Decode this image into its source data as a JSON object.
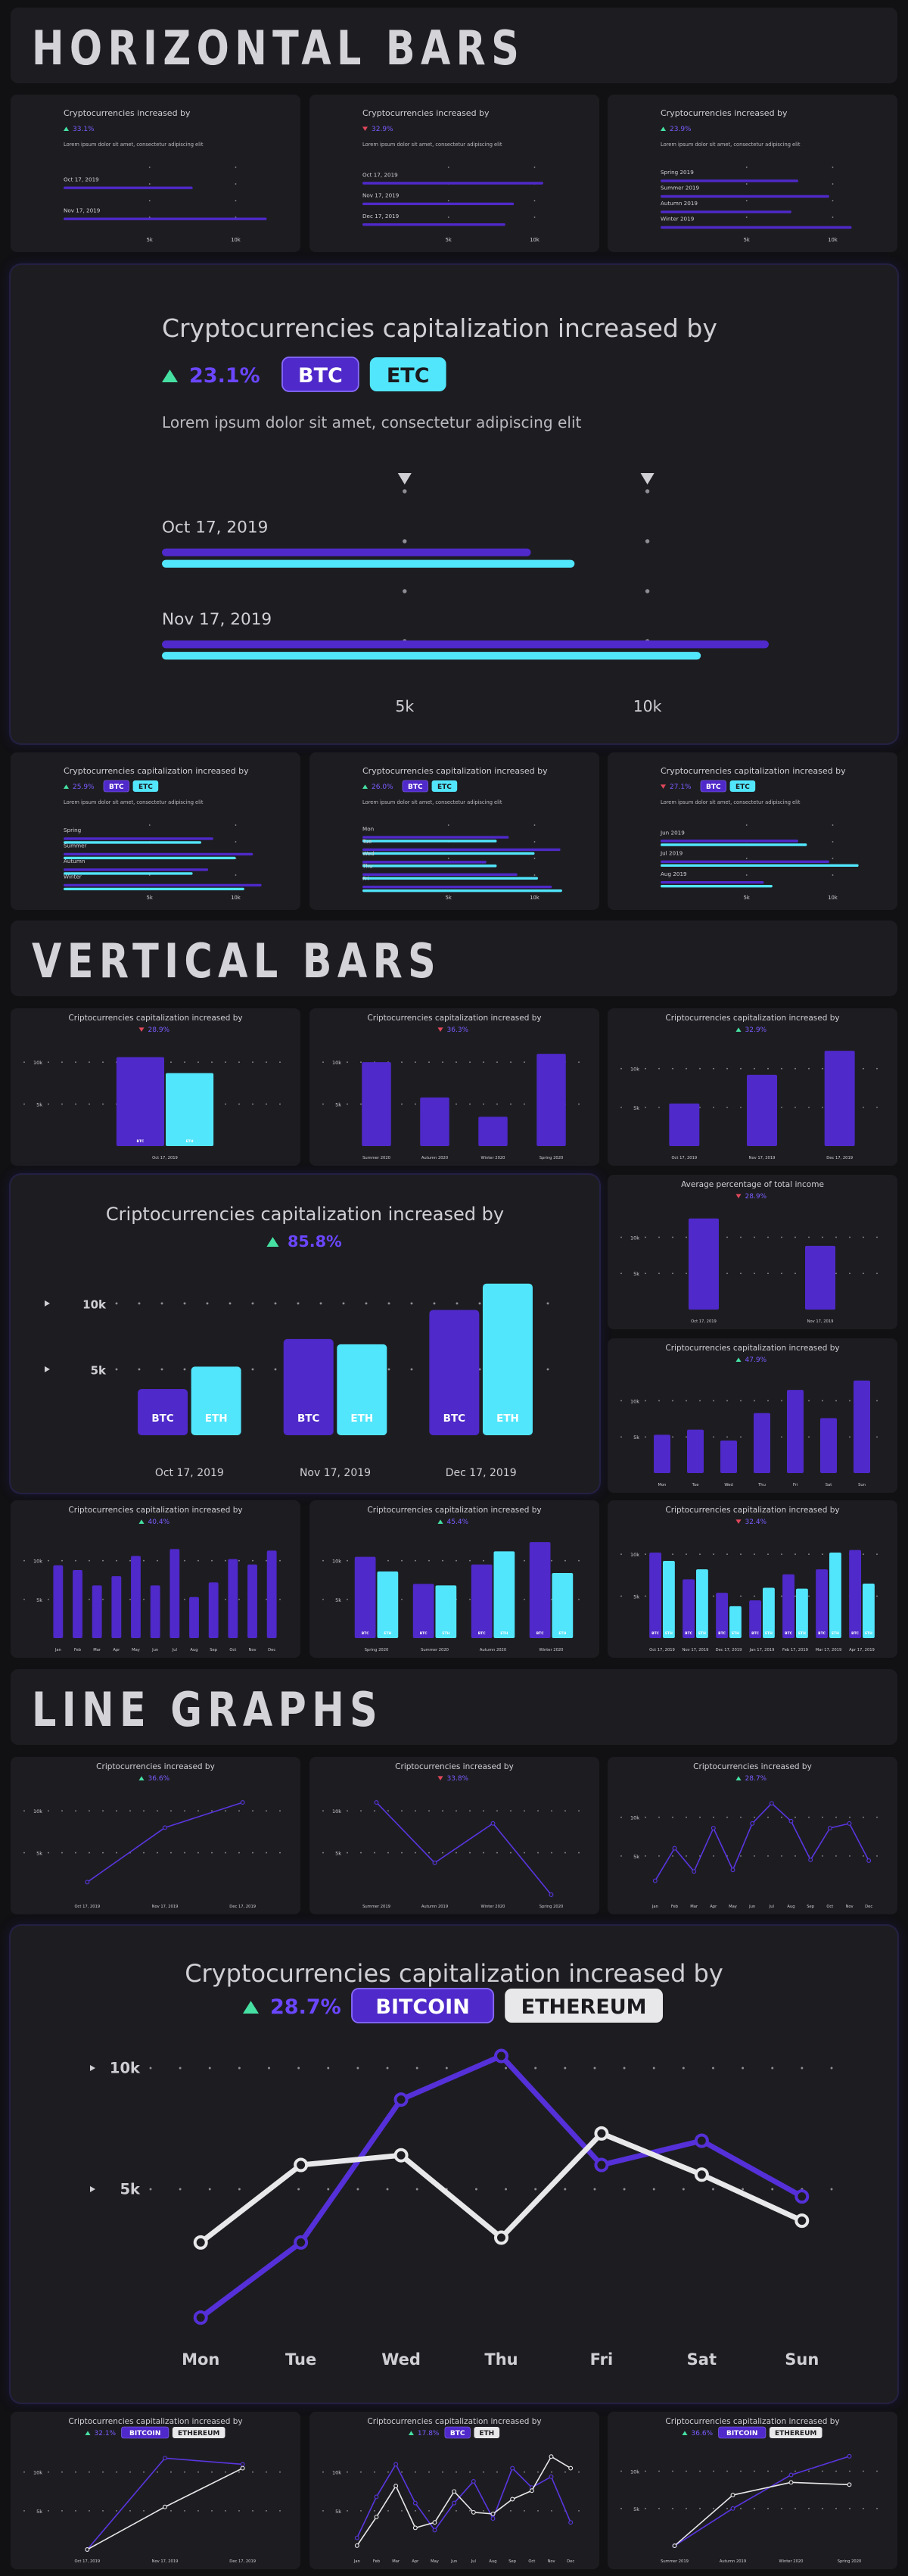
{
  "colors": {
    "purple": "#4f29c9",
    "cyan": "#52e6fc",
    "white": "#e8e8ea",
    "up": "#46e0a3",
    "down": "#e0475b"
  },
  "sections": {
    "horizontal": "HORIZONTAL BARS",
    "vertical": "VERTICAL BARS",
    "line": "LINE GRAPHS"
  },
  "chart_data": [
    {
      "id": "h1",
      "type": "bar",
      "orientation": "horizontal",
      "title": "Cryptocurrencies increased by",
      "change": "33.1%",
      "trend": "up",
      "subtitle": "Lorem ipsum dolor sit amet, consectetur adipiscing elit",
      "categories": [
        "Oct 17, 2019",
        "Nov 17, 2019"
      ],
      "series": [
        {
          "values": [
            7500,
            11800
          ]
        }
      ],
      "xlim": [
        0,
        12000
      ],
      "ticks": [
        5000,
        10000
      ],
      "tick_labels": [
        "5k",
        "10k"
      ]
    },
    {
      "id": "h2",
      "type": "bar",
      "orientation": "horizontal",
      "title": "Cryptocurrencies increased by",
      "change": "32.9%",
      "trend": "down",
      "subtitle": "Lorem ipsum dolor sit amet, consectetur adipiscing elit",
      "categories": [
        "Oct 17, 2019",
        "Nov 17, 2019",
        "Dec 17, 2019"
      ],
      "series": [
        {
          "values": [
            10500,
            8800,
            8300
          ]
        }
      ],
      "xlim": [
        0,
        12000
      ],
      "ticks": [
        5000,
        10000
      ],
      "tick_labels": [
        "5k",
        "10k"
      ]
    },
    {
      "id": "h3",
      "type": "bar",
      "orientation": "horizontal",
      "title": "Cryptocurrencies increased by",
      "change": "23.9%",
      "trend": "up",
      "subtitle": "Lorem ipsum dolor sit amet, consectetur adipiscing elit",
      "categories": [
        "Spring 2019",
        "Summer 2019",
        "Autumn 2019",
        "Winter 2019"
      ],
      "series": [
        {
          "values": [
            8000,
            9800,
            7600,
            11100
          ]
        }
      ],
      "xlim": [
        0,
        12000
      ],
      "ticks": [
        5000,
        10000
      ],
      "tick_labels": [
        "5k",
        "10k"
      ]
    },
    {
      "id": "hbig",
      "type": "bar",
      "orientation": "horizontal",
      "title": "Cryptocurrencies capitalization increased by",
      "change": "23.1%",
      "trend": "up",
      "tags": [
        "BTC",
        "ETC"
      ],
      "subtitle": "Lorem ipsum dolor sit amet, consectetur adipiscing elit",
      "categories": [
        "Oct 17, 2019",
        "Nov 17, 2019"
      ],
      "series": [
        {
          "name": "BTC",
          "values": [
            7600,
            12500
          ]
        },
        {
          "name": "ETC",
          "values": [
            8500,
            11100
          ]
        }
      ],
      "xlim": [
        0,
        12500
      ],
      "ticks": [
        5000,
        10000
      ],
      "tick_labels": [
        "5k",
        "10k"
      ]
    },
    {
      "id": "h4",
      "type": "bar",
      "orientation": "horizontal",
      "title": "Cryptocurrencies capitalization increased by",
      "change": "25.9%",
      "trend": "up",
      "tags": [
        "BTC",
        "ETC"
      ],
      "subtitle": "Lorem ipsum dolor sit amet, consectetur adipiscing elit",
      "categories": [
        "Spring",
        "Summer",
        "Autumn",
        "Winter"
      ],
      "series": [
        {
          "name": "BTC",
          "values": [
            8700,
            11000,
            8400,
            11500
          ]
        },
        {
          "name": "ETC",
          "values": [
            8000,
            10000,
            7500,
            10500
          ]
        }
      ],
      "xlim": [
        0,
        12000
      ],
      "ticks": [
        5000,
        10000
      ],
      "tick_labels": [
        "5k",
        "10k"
      ]
    },
    {
      "id": "h5",
      "type": "bar",
      "orientation": "horizontal",
      "title": "Cryptocurrencies capitalization increased by",
      "change": "26.0%",
      "trend": "up",
      "tags": [
        "BTC",
        "ETC"
      ],
      "subtitle": "Lorem ipsum dolor sit amet, consectetur adipiscing elit",
      "categories": [
        "Mon",
        "Tue",
        "Wed",
        "Thu",
        "Fri"
      ],
      "series": [
        {
          "name": "BTC",
          "values": [
            8500,
            11500,
            7200,
            9000,
            11000
          ]
        },
        {
          "name": "ETC",
          "values": [
            7800,
            10000,
            7800,
            10200,
            11600
          ]
        }
      ],
      "xlim": [
        0,
        12000
      ],
      "ticks": [
        5000,
        10000
      ],
      "tick_labels": [
        "5k",
        "10k"
      ]
    },
    {
      "id": "h6",
      "type": "bar",
      "orientation": "horizontal",
      "title": "Cryptocurrencies capitalization increased by",
      "change": "27.1%",
      "trend": "down",
      "tags": [
        "BTC",
        "ETC"
      ],
      "subtitle": "Lorem ipsum dolor sit amet, consectetur adipiscing elit",
      "categories": [
        "Jun 2019",
        "Jul 2019",
        "Aug 2019"
      ],
      "series": [
        {
          "name": "BTC",
          "values": [
            8000,
            9800,
            6000
          ]
        },
        {
          "name": "ETC",
          "values": [
            8500,
            11500,
            6500
          ]
        }
      ],
      "xlim": [
        0,
        12000
      ],
      "ticks": [
        5000,
        10000
      ],
      "tick_labels": [
        "5k",
        "10k"
      ]
    },
    {
      "id": "v1",
      "type": "bar",
      "orientation": "vertical",
      "title": "Criptocurrencies capitalization increased by",
      "change": "28.9%",
      "trend": "down",
      "categories": [
        "Oct 17, 2019"
      ],
      "series": [
        {
          "name": "BTC",
          "values": [
            10600
          ]
        },
        {
          "name": "ETH",
          "values": [
            8700
          ]
        }
      ],
      "ylim": [
        0,
        12000
      ],
      "ticks": [
        5000,
        10000
      ],
      "tick_labels": [
        "5k",
        "10k"
      ]
    },
    {
      "id": "v2",
      "type": "bar",
      "orientation": "vertical",
      "title": "Criptocurrencies capitalization increased by",
      "change": "36.3%",
      "trend": "down",
      "categories": [
        "Summer 2020",
        "Autumn 2020",
        "Winter 2020",
        "Spring 2020"
      ],
      "series": [
        {
          "values": [
            10000,
            5800,
            3500,
            11000
          ]
        }
      ],
      "ylim": [
        0,
        12000
      ],
      "ticks": [
        5000,
        10000
      ],
      "tick_labels": [
        "5k",
        "10k"
      ]
    },
    {
      "id": "v3",
      "type": "bar",
      "orientation": "vertical",
      "title": "Criptocurrencies capitalization increased by",
      "change": "32.9%",
      "trend": "up",
      "categories": [
        "Oct 17, 2019",
        "Nov 17, 2019",
        "Dec 17, 2019"
      ],
      "series": [
        {
          "values": [
            5500,
            9200,
            12300
          ]
        }
      ],
      "ylim": [
        0,
        13000
      ],
      "ticks": [
        5000,
        10000
      ],
      "tick_labels": [
        "5k",
        "10k"
      ]
    },
    {
      "id": "vbig",
      "type": "bar",
      "orientation": "vertical",
      "title": "Criptocurrencies capitalization increased by",
      "change": "85.8%",
      "trend": "up",
      "categories": [
        "Oct 17, 2019",
        "Nov 17, 2019",
        "Dec 17, 2019"
      ],
      "series": [
        {
          "name": "BTC",
          "values": [
            3500,
            7300,
            9500
          ]
        },
        {
          "name": "ETH",
          "values": [
            5200,
            6900,
            11500
          ]
        }
      ],
      "ylim": [
        0,
        12000
      ],
      "ticks": [
        5000,
        10000
      ],
      "tick_labels": [
        "5k",
        "10k"
      ]
    },
    {
      "id": "v4",
      "type": "bar",
      "orientation": "vertical",
      "title": "Average percentage of total income",
      "change": "28.9%",
      "trend": "down",
      "categories": [
        "Oct 17, 2019",
        "Nov 17, 2019"
      ],
      "series": [
        {
          "values": [
            12600,
            8800
          ]
        }
      ],
      "ylim": [
        0,
        13500
      ],
      "ticks": [
        5000,
        10000
      ],
      "tick_labels": [
        "5k",
        "10k"
      ]
    },
    {
      "id": "v5",
      "type": "bar",
      "orientation": "vertical",
      "title": "Criptocurrencies capitalization increased by",
      "change": "47.9%",
      "trend": "up",
      "categories": [
        "Mon",
        "Tue",
        "Wed",
        "Thu",
        "Fri",
        "Sat",
        "Sun"
      ],
      "series": [
        {
          "values": [
            5300,
            6000,
            4500,
            8300,
            11500,
            7600,
            12800
          ]
        }
      ],
      "ylim": [
        0,
        13500
      ],
      "ticks": [
        5000,
        10000
      ],
      "tick_labels": [
        "5k",
        "10k"
      ]
    },
    {
      "id": "v6",
      "type": "bar",
      "orientation": "vertical",
      "title": "Criptocurrencies capitalization increased by",
      "change": "40.4%",
      "trend": "up",
      "categories": [
        "Jan",
        "Feb",
        "Mar",
        "Apr",
        "May",
        "Jun",
        "Jul",
        "Aug",
        "Sep",
        "Oct",
        "Nov",
        "Dec"
      ],
      "series": [
        {
          "values": [
            9400,
            8800,
            6800,
            8000,
            10600,
            6800,
            11500,
            5300,
            7200,
            10200,
            9500,
            11300
          ]
        }
      ],
      "ylim": [
        0,
        13000
      ],
      "ticks": [
        5000,
        10000
      ],
      "tick_labels": [
        "5k",
        "10k"
      ]
    },
    {
      "id": "v7",
      "type": "bar",
      "orientation": "vertical",
      "title": "Criptocurrencies capitalization increased by",
      "change": "45.4%",
      "trend": "up",
      "categories": [
        "Spring 2020",
        "Summer 2020",
        "Autumn 2020",
        "Winter 2020"
      ],
      "series": [
        {
          "name": "BTC",
          "values": [
            10500,
            7000,
            9500,
            12400
          ]
        },
        {
          "name": "ETH",
          "values": [
            8600,
            6800,
            11200,
            8400
          ]
        }
      ],
      "ylim": [
        0,
        13000
      ],
      "ticks": [
        5000,
        10000
      ],
      "tick_labels": [
        "5k",
        "10k"
      ]
    },
    {
      "id": "v8",
      "type": "bar",
      "orientation": "vertical",
      "title": "Criptocurrencies capitalization increased by",
      "change": "32.4%",
      "trend": "down",
      "categories": [
        "Oct 17, 2019",
        "Nov 17, 2019",
        "Dec 17, 2019",
        "Jan 17, 2019",
        "Feb 17, 2019",
        "Mar 17, 2019",
        "Apr 17, 2019"
      ],
      "series": [
        {
          "name": "BTC",
          "values": [
            10200,
            7000,
            5400,
            4500,
            7600,
            8200,
            10500
          ]
        },
        {
          "name": "ETH",
          "values": [
            9200,
            8200,
            3800,
            6000,
            5900,
            10200,
            6500
          ]
        }
      ],
      "ylim": [
        0,
        12000
      ],
      "ticks": [
        5000,
        10000
      ],
      "tick_labels": [
        "5k",
        "10k"
      ]
    },
    {
      "id": "l1",
      "type": "line",
      "title": "Criptocurrencies increased by",
      "change": "36.6%",
      "trend": "up",
      "categories": [
        "Oct 17, 2019",
        "Nov 17, 2019",
        "Dec 17, 2019"
      ],
      "series": [
        {
          "values": [
            1500,
            8000,
            11000
          ]
        }
      ],
      "ylim": [
        0,
        12000
      ],
      "ticks": [
        5000,
        10000
      ],
      "tick_labels": [
        "5k",
        "10k"
      ]
    },
    {
      "id": "l2",
      "type": "line",
      "title": "Criptocurrencies increased by",
      "change": "33.8%",
      "trend": "down",
      "categories": [
        "Summer 2019",
        "Autumn 2019",
        "Winter 2020",
        "Spring 2020"
      ],
      "series": [
        {
          "values": [
            11000,
            3800,
            8500,
            0
          ]
        }
      ],
      "ylim": [
        0,
        12000
      ],
      "ticks": [
        5000,
        10000
      ],
      "tick_labels": [
        "5k",
        "10k"
      ]
    },
    {
      "id": "l3",
      "type": "line",
      "title": "Criptocurrencies increased by",
      "change": "28.7%",
      "trend": "up",
      "categories": [
        "Jan",
        "Feb",
        "Mar",
        "Apr",
        "May",
        "Jun",
        "Jul",
        "Aug",
        "Sep",
        "Oct",
        "Nov",
        "Dec"
      ],
      "series": [
        {
          "values": [
            1800,
            6000,
            3000,
            8600,
            3200,
            9200,
            11800,
            9500,
            4500,
            8600,
            9200,
            4400
          ]
        }
      ],
      "ylim": [
        0,
        13000
      ],
      "ticks": [
        5000,
        10000
      ],
      "tick_labels": [
        "5k",
        "10k"
      ]
    },
    {
      "id": "lbig",
      "type": "line",
      "title": "Cryptocurrencies capitalization increased by",
      "change": "28.7%",
      "trend": "up",
      "tags": [
        "BITCOIN",
        "ETHEREUM"
      ],
      "categories": [
        "Mon",
        "Tue",
        "Wed",
        "Thu",
        "Fri",
        "Sat",
        "Sun"
      ],
      "series": [
        {
          "name": "BITCOIN",
          "values": [
            -300,
            2800,
            8700,
            10500,
            6000,
            7000,
            4700
          ]
        },
        {
          "name": "ETHEREUM",
          "values": [
            2800,
            6000,
            6400,
            3000,
            7300,
            5600,
            3700
          ]
        }
      ],
      "ylim": [
        -1000,
        11000
      ],
      "ticks": [
        5000,
        10000
      ],
      "tick_labels": [
        "5k",
        "10k"
      ]
    },
    {
      "id": "l4",
      "type": "line",
      "title": "Criptocurrencies capitalization increased by",
      "change": "32.1%",
      "trend": "up",
      "tags": [
        "BITCOIN",
        "ETHEREUM"
      ],
      "categories": [
        "Oct 17, 2019",
        "Nov 17, 2019",
        "Dec 17, 2019"
      ],
      "series": [
        {
          "name": "BITCOIN",
          "values": [
            0,
            11800,
            11000
          ]
        },
        {
          "name": "ETHEREUM",
          "values": [
            0,
            5500,
            10500
          ]
        }
      ],
      "ylim": [
        0,
        13000
      ],
      "ticks": [
        5000,
        10000
      ],
      "tick_labels": [
        "5k",
        "10k"
      ]
    },
    {
      "id": "l5",
      "type": "line",
      "title": "Criptocurrencies capitalization increased by",
      "change": "17.8%",
      "trend": "up",
      "tags": [
        "BTC",
        "ETH"
      ],
      "categories": [
        "Jan",
        "Feb",
        "Mar",
        "Apr",
        "May",
        "Jun",
        "Jul",
        "Aug",
        "Sep",
        "Oct",
        "Nov",
        "Dec"
      ],
      "series": [
        {
          "name": "BTC",
          "values": [
            1500,
            6800,
            11000,
            6000,
            2500,
            6000,
            8800,
            4000,
            10500,
            8000,
            9400,
            3500
          ]
        },
        {
          "name": "ETH",
          "values": [
            500,
            4200,
            8200,
            2800,
            3500,
            7500,
            4800,
            4600,
            6500,
            7600,
            12000,
            10500
          ]
        }
      ],
      "ylim": [
        0,
        13000
      ],
      "ticks": [
        5000,
        10000
      ],
      "tick_labels": [
        "5k",
        "10k"
      ]
    },
    {
      "id": "l6",
      "type": "line",
      "title": "Criptocurrencies capitalization increased by",
      "change": "36.6%",
      "trend": "up",
      "tags": [
        "BITCOIN",
        "ETHEREUM"
      ],
      "categories": [
        "Summer 2019",
        "Autumn 2019",
        "Winter 2020",
        "Spring 2020"
      ],
      "series": [
        {
          "name": "BITCOIN",
          "values": [
            0,
            5000,
            9500,
            12000
          ]
        },
        {
          "name": "ETHEREUM",
          "values": [
            0,
            6800,
            8500,
            8200
          ]
        }
      ],
      "ylim": [
        -500,
        13000
      ],
      "ticks": [
        5000,
        10000
      ],
      "tick_labels": [
        "5k",
        "10k"
      ]
    }
  ]
}
